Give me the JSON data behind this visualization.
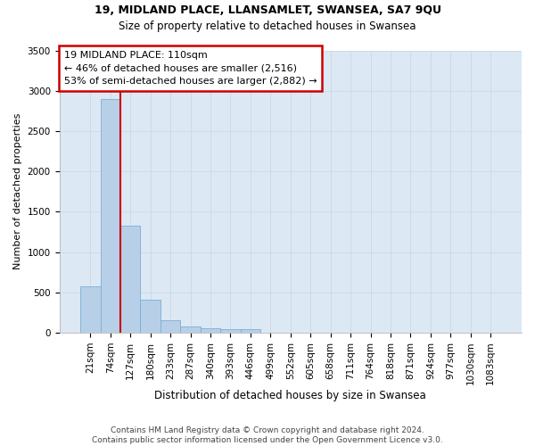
{
  "title1": "19, MIDLAND PLACE, LLANSAMLET, SWANSEA, SA7 9QU",
  "title2": "Size of property relative to detached houses in Swansea",
  "xlabel": "Distribution of detached houses by size in Swansea",
  "ylabel": "Number of detached properties",
  "footer": "Contains HM Land Registry data © Crown copyright and database right 2024.\nContains public sector information licensed under the Open Government Licence v3.0.",
  "categories": [
    "21sqm",
    "74sqm",
    "127sqm",
    "180sqm",
    "233sqm",
    "287sqm",
    "340sqm",
    "393sqm",
    "446sqm",
    "499sqm",
    "552sqm",
    "605sqm",
    "658sqm",
    "711sqm",
    "764sqm",
    "818sqm",
    "871sqm",
    "924sqm",
    "977sqm",
    "1030sqm",
    "1083sqm"
  ],
  "values": [
    575,
    2900,
    1330,
    415,
    155,
    80,
    55,
    45,
    40,
    0,
    0,
    0,
    0,
    0,
    0,
    0,
    0,
    0,
    0,
    0,
    0
  ],
  "bar_color": "#b8cfe8",
  "bar_edge_color": "#7aafd4",
  "annotation_text": "19 MIDLAND PLACE: 110sqm\n← 46% of detached houses are smaller (2,516)\n53% of semi-detached houses are larger (2,882) →",
  "vline_x": 1.5,
  "vline_color": "#cc0000",
  "annotation_box_facecolor": "#ffffff",
  "annotation_box_edgecolor": "#cc0000",
  "ylim": [
    0,
    3500
  ],
  "yticks": [
    0,
    500,
    1000,
    1500,
    2000,
    2500,
    3000,
    3500
  ],
  "grid_color": "#c8d4e0",
  "background_color": "#dce8f4",
  "title1_fontsize": 9,
  "title2_fontsize": 8.5,
  "ylabel_fontsize": 8,
  "xlabel_fontsize": 8.5,
  "tick_fontsize": 7.5,
  "footer_fontsize": 6.5,
  "annotation_fontsize": 8
}
